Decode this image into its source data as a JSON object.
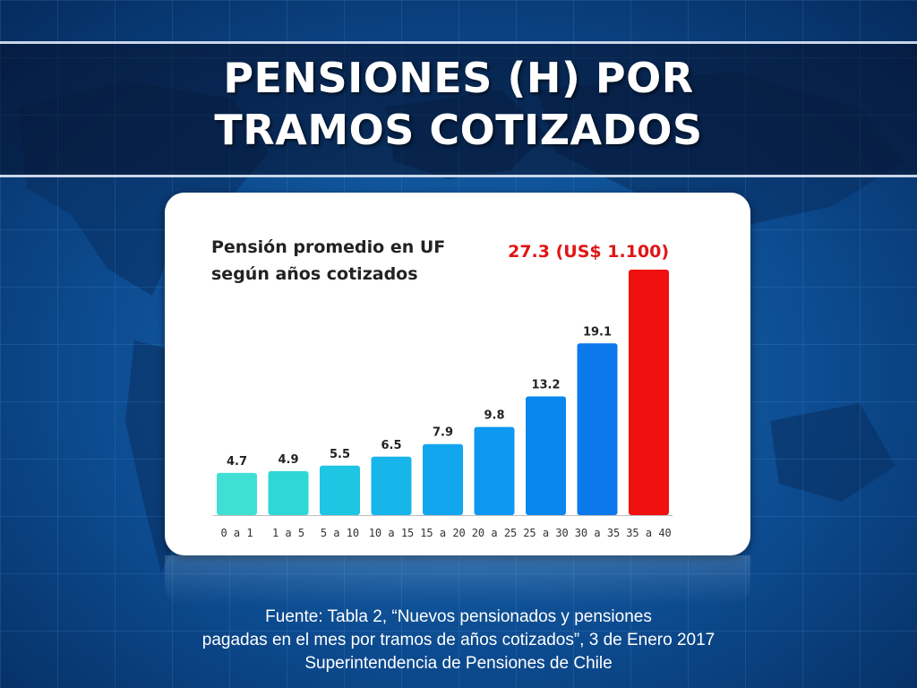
{
  "slide": {
    "title_lines": [
      "PENSIONES (H) POR",
      "TRAMOS COTIZADOS"
    ],
    "source_lines": [
      "Fuente: Tabla 2, “Nuevos pensionados y pensiones",
      "pagadas en el mes por tramos de años cotizados”, 3 de Enero 2017",
      "Superintendencia de Pensiones de Chile"
    ]
  },
  "chart_data": {
    "type": "bar",
    "title_lines": [
      "Pensión promedio en UF",
      "según años cotizados"
    ],
    "categories": [
      "0 a 1",
      "1 a 5",
      "5 a 10",
      "10 a 15",
      "15 a 20",
      "20 a 25",
      "25 a 30",
      "30 a 35",
      "35 a 40"
    ],
    "values": [
      4.7,
      4.9,
      5.5,
      6.5,
      7.9,
      9.8,
      13.2,
      19.1,
      27.3
    ],
    "data_labels": [
      "4.7",
      "4.9",
      "5.5",
      "6.5",
      "7.9",
      "9.8",
      "13.2",
      "19.1",
      "27.3 (US$ 1.100)"
    ],
    "colors": [
      "#3fdfd3",
      "#2ed8d6",
      "#1ec6e4",
      "#16b6ea",
      "#12a6ef",
      "#0e98f1",
      "#0a87ef",
      "#0b78eb",
      "#f01010"
    ],
    "highlight_label_color": "#e01515",
    "ylim": [
      0,
      27.3
    ],
    "grid": false,
    "legend": "none"
  }
}
